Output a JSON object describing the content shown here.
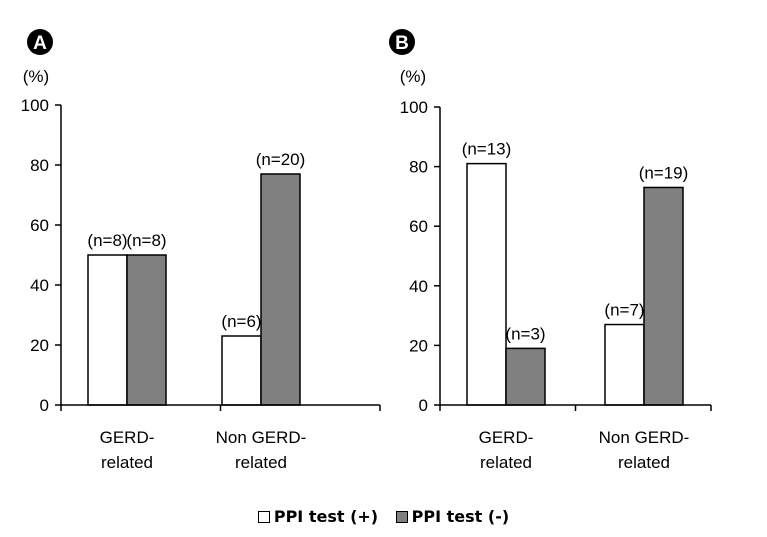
{
  "chart_data": [
    {
      "type": "bar",
      "panel_label": "A",
      "unit_label": "(%)",
      "categories": [
        [
          "GERD-",
          "related"
        ],
        [
          "Non GERD-",
          "related"
        ]
      ],
      "series": [
        {
          "name": "PPI test (+)",
          "values": [
            50,
            23
          ],
          "labels": [
            "(n=8)",
            "(n=6)"
          ]
        },
        {
          "name": "PPI test (-)",
          "values": [
            50,
            77
          ],
          "labels": [
            "(n=8)",
            "(n=20)"
          ]
        }
      ],
      "ylim": [
        0,
        100
      ],
      "yticks": [
        "0",
        "20",
        "40",
        "60",
        "80",
        "100"
      ],
      "grid": false
    },
    {
      "type": "bar",
      "panel_label": "B",
      "unit_label": "(%)",
      "categories": [
        [
          "GERD-",
          "related"
        ],
        [
          "Non GERD-",
          "related"
        ]
      ],
      "series": [
        {
          "name": "PPI test (+)",
          "values": [
            81,
            27
          ],
          "labels": [
            "(n=13)",
            "(n=7)"
          ]
        },
        {
          "name": "PPI test (-)",
          "values": [
            19,
            73
          ],
          "labels": [
            "(n=3)",
            "(n=19)"
          ]
        }
      ],
      "ylim": [
        0,
        100
      ],
      "yticks": [
        "0",
        "20",
        "40",
        "60",
        "80",
        "100"
      ],
      "grid": false
    }
  ],
  "legend": {
    "placement": "bottom",
    "items": [
      {
        "label": "PPI test (+)",
        "color": "#ffffff"
      },
      {
        "label": "PPI test (-)",
        "color": "#808080"
      }
    ]
  },
  "colors": {
    "positive": "#ffffff",
    "negative": "#808080",
    "axis": "#000000"
  }
}
